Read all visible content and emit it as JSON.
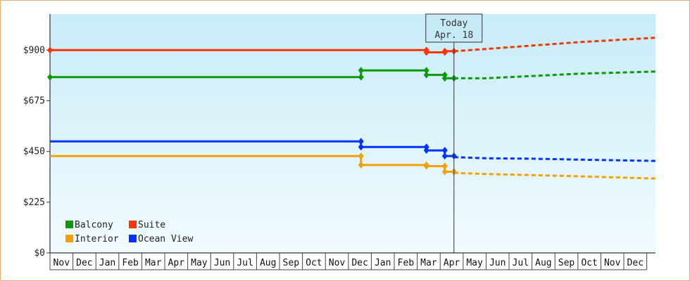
{
  "chart_data": {
    "type": "line",
    "y_ticks": [
      "$0",
      "$225",
      "$450",
      "$675",
      "$900"
    ],
    "y_tick_values": [
      0,
      225,
      450,
      675,
      900
    ],
    "ylim": [
      0,
      1060
    ],
    "months": [
      "Nov",
      "Dec",
      "Jan",
      "Feb",
      "Mar",
      "Apr",
      "May",
      "Jun",
      "Jul",
      "Aug",
      "Sep",
      "Oct",
      "Nov",
      "Dec",
      "Jan",
      "Feb",
      "Mar",
      "Apr",
      "May",
      "Jun",
      "Jul",
      "Aug",
      "Sep",
      "Oct",
      "Nov",
      "Dec"
    ],
    "x_range_months": [
      0,
      26.4
    ],
    "today": {
      "title": "Today",
      "date": "Apr. 18",
      "x": 17.6
    },
    "legend_position": "bottom-left",
    "series": [
      {
        "name": "Balcony",
        "color": "#0a9a0a",
        "actual": [
          [
            0,
            780
          ],
          [
            13.55,
            780
          ],
          [
            13.55,
            810
          ],
          [
            16.4,
            810
          ],
          [
            16.4,
            790
          ],
          [
            17.2,
            790
          ],
          [
            17.2,
            775
          ],
          [
            17.6,
            775
          ]
        ],
        "forecast": [
          [
            17.6,
            775
          ],
          [
            19,
            775
          ],
          [
            21,
            785
          ],
          [
            23,
            795
          ],
          [
            26.4,
            805
          ]
        ]
      },
      {
        "name": "Suite",
        "color": "#ff3300",
        "actual": [
          [
            0,
            900
          ],
          [
            16.4,
            900
          ],
          [
            16.4,
            890
          ],
          [
            17.2,
            890
          ],
          [
            17.2,
            895
          ],
          [
            17.6,
            895
          ]
        ],
        "forecast": [
          [
            17.6,
            895
          ],
          [
            19,
            905
          ],
          [
            21,
            920
          ],
          [
            23,
            935
          ],
          [
            26.4,
            955
          ]
        ]
      },
      {
        "name": "Interior",
        "color": "#f5a000",
        "actual": [
          [
            0,
            430
          ],
          [
            13.55,
            430
          ],
          [
            13.55,
            390
          ],
          [
            16.4,
            390
          ],
          [
            16.4,
            385
          ],
          [
            17.2,
            385
          ],
          [
            17.2,
            360
          ],
          [
            17.6,
            360
          ]
        ],
        "forecast": [
          [
            17.6,
            355
          ],
          [
            19,
            350
          ],
          [
            21,
            345
          ],
          [
            23,
            340
          ],
          [
            26.4,
            330
          ]
        ]
      },
      {
        "name": "Ocean View",
        "color": "#0033ff",
        "actual": [
          [
            0,
            495
          ],
          [
            13.55,
            495
          ],
          [
            13.55,
            470
          ],
          [
            16.4,
            470
          ],
          [
            16.4,
            455
          ],
          [
            17.2,
            455
          ],
          [
            17.2,
            430
          ],
          [
            17.6,
            430
          ]
        ],
        "forecast": [
          [
            17.6,
            425
          ],
          [
            19,
            420
          ],
          [
            21,
            418
          ],
          [
            23,
            414
          ],
          [
            26.4,
            408
          ]
        ]
      }
    ],
    "markers": {
      "Balcony": [
        [
          0,
          780
        ],
        [
          13.55,
          780
        ],
        [
          13.55,
          810
        ],
        [
          16.4,
          810
        ],
        [
          16.4,
          790
        ],
        [
          17.2,
          790
        ],
        [
          17.2,
          775
        ],
        [
          17.6,
          775
        ]
      ],
      "Suite": [
        [
          0,
          900
        ],
        [
          16.4,
          900
        ],
        [
          16.4,
          890
        ],
        [
          17.2,
          890
        ],
        [
          17.2,
          895
        ],
        [
          17.6,
          895
        ]
      ],
      "Interior": [
        [
          13.55,
          430
        ],
        [
          13.55,
          390
        ],
        [
          16.4,
          390
        ],
        [
          16.4,
          385
        ],
        [
          17.2,
          385
        ],
        [
          17.2,
          360
        ],
        [
          17.6,
          360
        ]
      ],
      "Ocean View": [
        [
          13.55,
          495
        ],
        [
          13.55,
          470
        ],
        [
          16.4,
          470
        ],
        [
          16.4,
          455
        ],
        [
          17.2,
          455
        ],
        [
          17.2,
          430
        ],
        [
          17.6,
          430
        ]
      ]
    },
    "legend_order": [
      "Balcony",
      "Suite",
      "Interior",
      "Ocean View"
    ]
  }
}
